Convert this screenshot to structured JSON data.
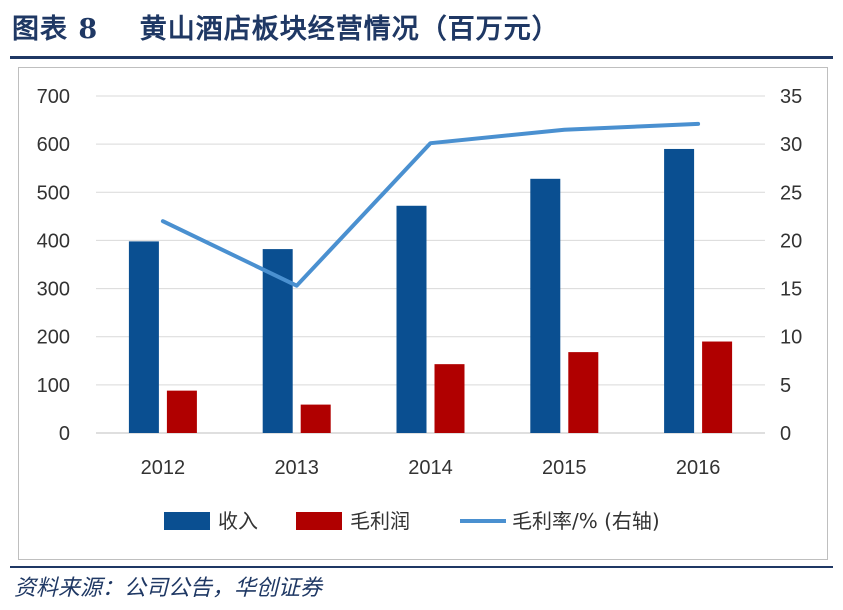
{
  "header": {
    "figure_label": "图表 8",
    "title": "黄山酒店板块经营情况（百万元）"
  },
  "footer": {
    "source": "资料来源：公司公告，华创证券"
  },
  "colors": {
    "revenue": "#0a4f91",
    "gross_profit": "#b00000",
    "margin_line": "#4a90d0",
    "header_blue": "#1f3864"
  },
  "chart_data": {
    "type": "bar",
    "categories": [
      "2012",
      "2013",
      "2014",
      "2015",
      "2016"
    ],
    "series": [
      {
        "name": "收入",
        "type": "bar",
        "axis": "left",
        "values": [
          398,
          382,
          472,
          528,
          590
        ]
      },
      {
        "name": "毛利润",
        "type": "bar",
        "axis": "left",
        "values": [
          88,
          59,
          143,
          168,
          190
        ]
      },
      {
        "name": "毛利率/% (右轴)",
        "type": "line",
        "axis": "right",
        "values": [
          22,
          15.3,
          30.1,
          31.5,
          32.1
        ]
      }
    ],
    "y_left": {
      "min": 0,
      "max": 700,
      "ticks": [
        "0",
        "100",
        "200",
        "300",
        "400",
        "500",
        "600",
        "700"
      ]
    },
    "y_right": {
      "min": 0,
      "max": 35,
      "ticks": [
        "0",
        "5",
        "10",
        "15",
        "20",
        "25",
        "30",
        "35"
      ]
    },
    "grid": true,
    "legend": "bottom"
  }
}
